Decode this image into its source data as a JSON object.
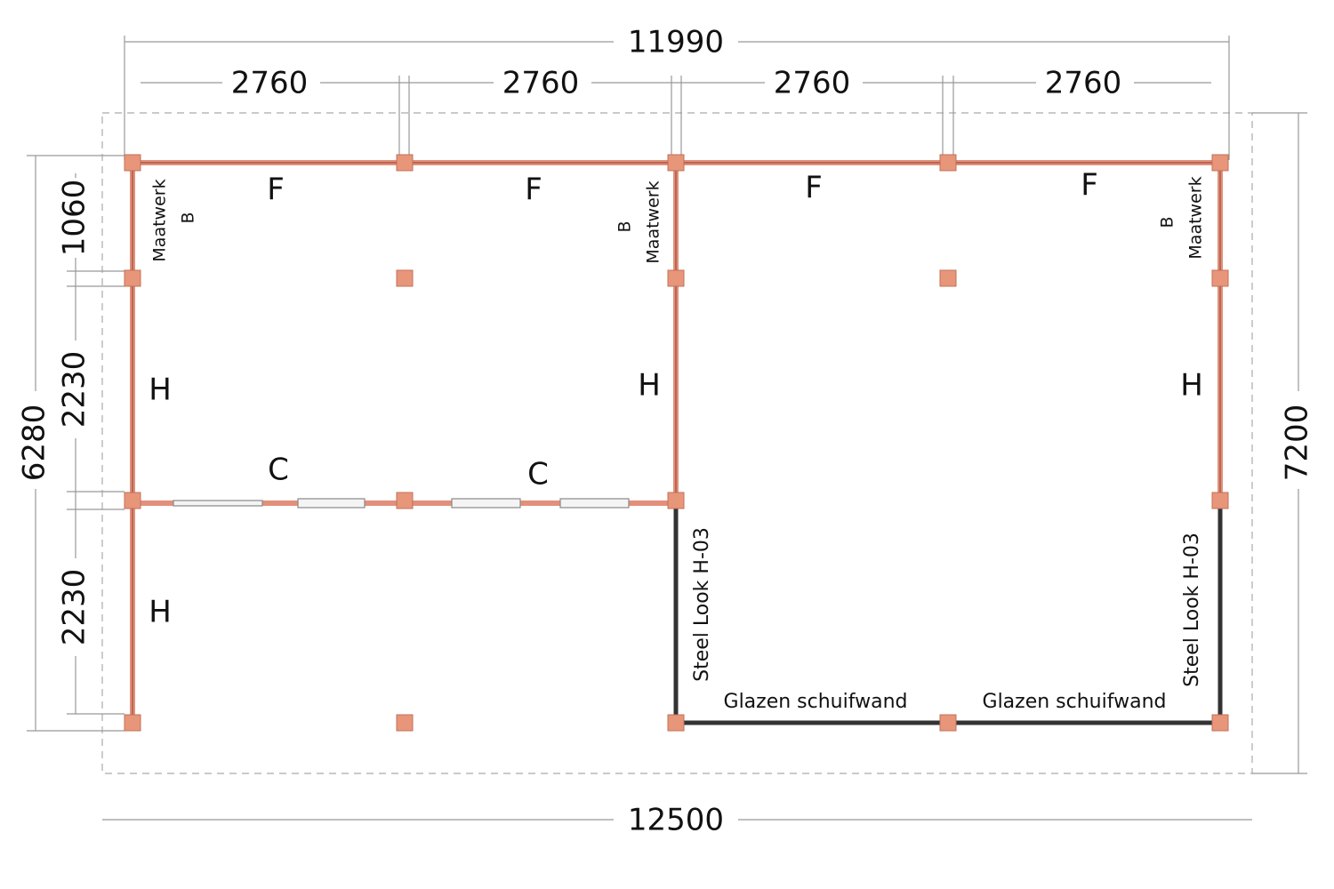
{
  "dimensions": {
    "total_width_top": "11990",
    "bays": [
      "2760",
      "2760",
      "2760",
      "2760"
    ],
    "total_width_bottom": "12500",
    "total_depth_right": "7200",
    "total_depth_left": "6280",
    "depth_segments": [
      "1060",
      "2230",
      "2230"
    ]
  },
  "walls": {
    "top": [
      "F",
      "F",
      "F",
      "F"
    ],
    "side": [
      "H",
      "H",
      "H",
      "H"
    ],
    "internal": [
      "C",
      "C"
    ],
    "custom": [
      {
        "label": "Maatwerk",
        "code": "B"
      },
      {
        "label": "Maatwerk",
        "code": "B"
      },
      {
        "label": "Maatwerk",
        "code": "B"
      }
    ],
    "steel": [
      "Steel Look H-03",
      "Steel Look H-03"
    ],
    "glass": [
      "Glazen schuifwand",
      "Glazen schuifwand"
    ]
  }
}
